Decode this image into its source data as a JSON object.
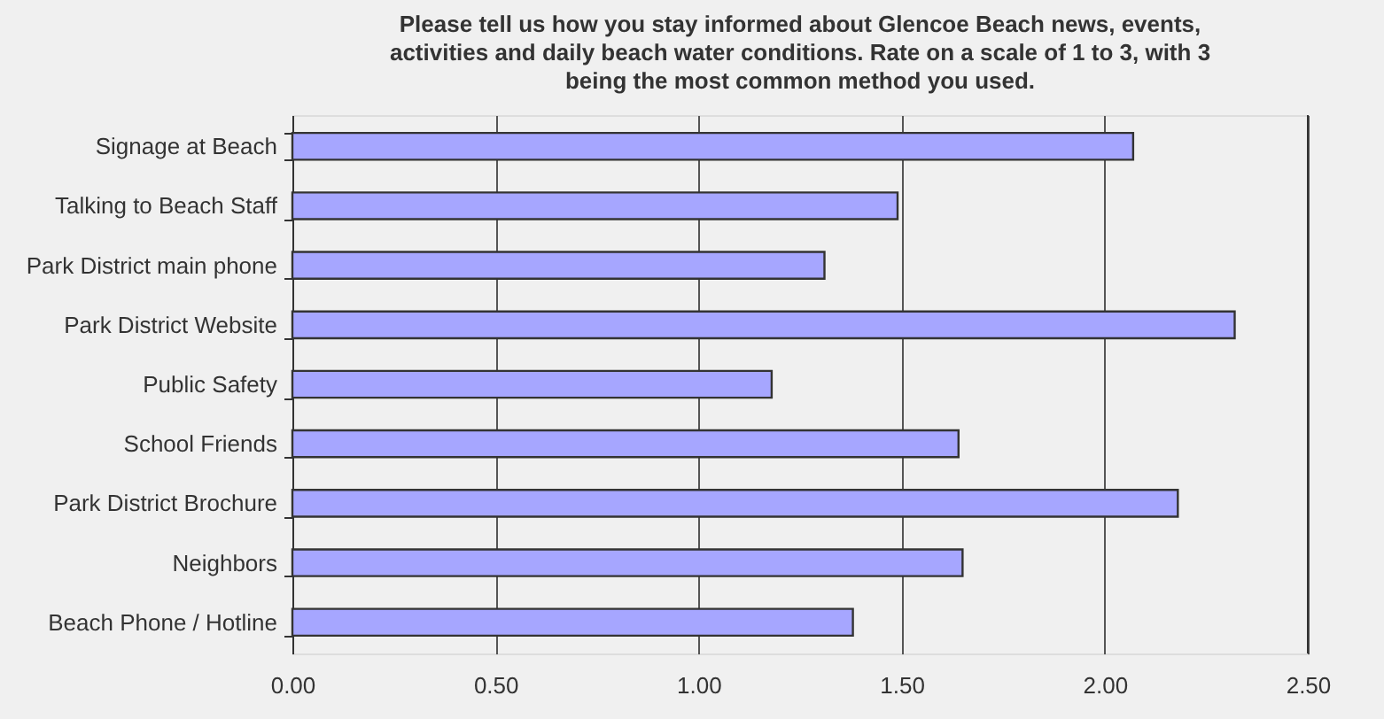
{
  "chart_data": {
    "type": "bar",
    "orientation": "horizontal",
    "title": "Please tell us how you stay informed about Glencoe Beach news, events, activities and daily beach water conditions. Rate on a scale of 1 to 3, with 3 being the most common method you used.",
    "categories": [
      "Signage at Beach",
      "Talking to Beach Staff",
      "Park District main phone",
      "Park District Website",
      "Public Safety",
      "School Friends",
      "Park District Brochure",
      "Neighbors",
      "Beach Phone / Hotline"
    ],
    "values": [
      2.07,
      1.49,
      1.31,
      2.32,
      1.18,
      1.64,
      2.18,
      1.65,
      1.38
    ],
    "color": "#a6a6ff",
    "xlim": [
      0,
      2.5
    ],
    "xticks": [
      {
        "value": 0,
        "label": "0.00"
      },
      {
        "value": 0.5,
        "label": "0.50"
      },
      {
        "value": 1,
        "label": "1.00"
      },
      {
        "value": 1.5,
        "label": "1.50"
      },
      {
        "value": 2,
        "label": "2.00"
      },
      {
        "value": 2.5,
        "label": "2.50"
      }
    ],
    "grid": "x"
  }
}
